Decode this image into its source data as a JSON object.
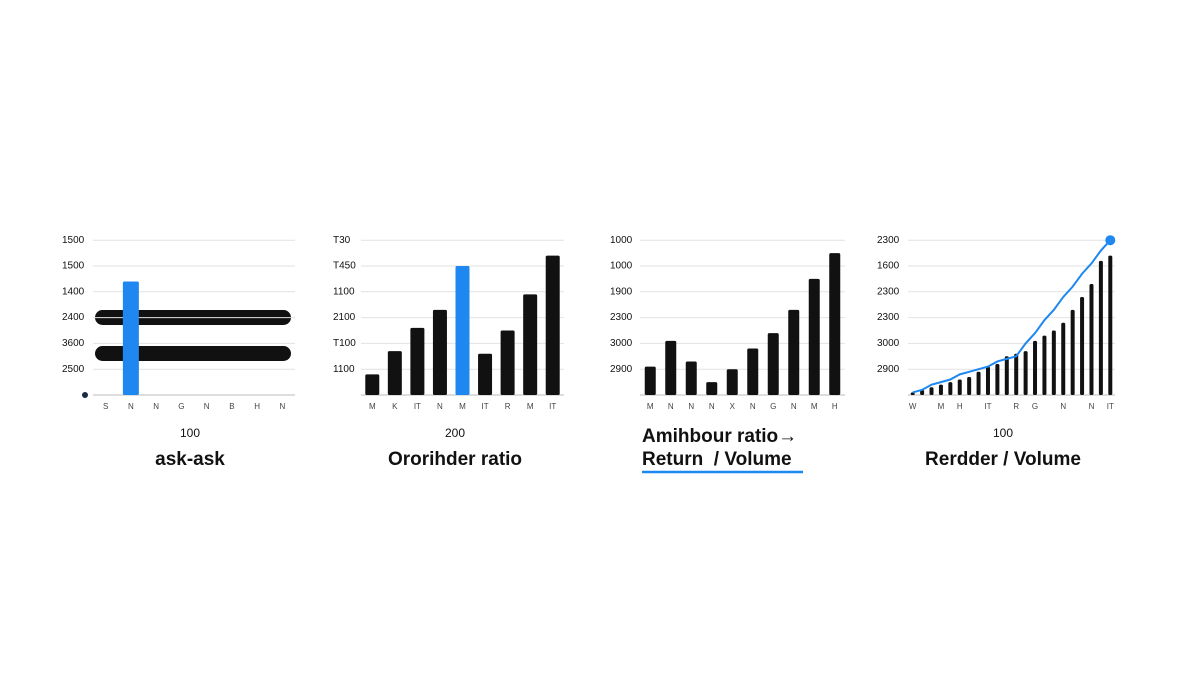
{
  "chart_data": [
    {
      "type": "bar",
      "title": "ask-ask",
      "note": "100",
      "grid": true,
      "ylim": [
        0,
        6
      ],
      "yticks": [
        {
          "value": 1,
          "label": "2500"
        },
        {
          "value": 2,
          "label": "3600"
        },
        {
          "value": 3,
          "label": "2400"
        },
        {
          "value": 4,
          "label": "1400"
        },
        {
          "value": 5,
          "label": "1500"
        },
        {
          "value": 6,
          "label": "1500"
        }
      ],
      "categories": [
        "S",
        "N",
        "N",
        "G",
        "N",
        "B",
        "H",
        "N"
      ],
      "series": [
        {
          "type": "bar",
          "color": "#1e88f0",
          "values": [
            null,
            4.4,
            null,
            null,
            null,
            null,
            null,
            null
          ]
        }
      ]
    },
    {
      "type": "bar",
      "title": "Ororihder ratio",
      "note": "200",
      "grid": true,
      "ylim": [
        0,
        6
      ],
      "yticks": [
        {
          "value": 1,
          "label": "1100"
        },
        {
          "value": 2,
          "label": "T100"
        },
        {
          "value": 3,
          "label": "2100"
        },
        {
          "value": 4,
          "label": "1100"
        },
        {
          "value": 5,
          "label": "T450"
        },
        {
          "value": 6,
          "label": "T30"
        }
      ],
      "categories": [
        "M",
        "K",
        "IT",
        "N",
        "M",
        "IT",
        "R",
        "M",
        "IT"
      ],
      "series": [
        {
          "type": "bar",
          "colors": [
            "#111111",
            "#111111",
            "#111111",
            "#111111",
            "#1e88f0",
            "#111111",
            "#111111",
            "#111111",
            "#111111"
          ],
          "values": [
            0.8,
            1.7,
            2.6,
            3.3,
            5.0,
            1.6,
            2.5,
            3.9,
            5.4
          ]
        }
      ]
    },
    {
      "type": "bar",
      "title": "Amihbour ratio→",
      "subtitle": "Return  / Volume",
      "grid": true,
      "ylim": [
        0,
        6
      ],
      "yticks": [
        {
          "value": 1,
          "label": "2900"
        },
        {
          "value": 2,
          "label": "3000"
        },
        {
          "value": 3,
          "label": "2300"
        },
        {
          "value": 4,
          "label": "1900"
        },
        {
          "value": 5,
          "label": "1000"
        },
        {
          "value": 6,
          "label": "1000"
        }
      ],
      "categories": [
        "M",
        "N",
        "N",
        "N",
        "X",
        "N",
        "G",
        "N",
        "M",
        "H"
      ],
      "series": [
        {
          "type": "bar",
          "color": "#111111",
          "values": [
            1.1,
            2.1,
            1.3,
            0.5,
            1.0,
            1.8,
            2.4,
            3.3,
            4.5,
            5.5
          ]
        }
      ]
    },
    {
      "type": "bar",
      "title": "Rerdder / Volume",
      "note": "100",
      "grid": true,
      "ylim": [
        0,
        6
      ],
      "yticks": [
        {
          "value": 1,
          "label": "2900"
        },
        {
          "value": 2,
          "label": "3000"
        },
        {
          "value": 3,
          "label": "2300"
        },
        {
          "value": 4,
          "label": "2300"
        },
        {
          "value": 5,
          "label": "1600"
        },
        {
          "value": 6,
          "label": "2300"
        }
      ],
      "categories": [
        "W",
        null,
        null,
        "M",
        null,
        "H",
        null,
        null,
        "IT",
        null,
        null,
        "R",
        null,
        "G",
        null,
        null,
        "N",
        null,
        null,
        "N",
        null,
        "IT"
      ],
      "series": [
        {
          "type": "bar",
          "color": "#111111",
          "values": [
            0.1,
            0.2,
            0.3,
            0.4,
            0.5,
            0.6,
            0.7,
            0.9,
            1.1,
            1.2,
            1.5,
            1.6,
            1.7,
            2.1,
            2.3,
            2.5,
            2.8,
            3.3,
            3.8,
            4.3,
            5.2,
            5.4
          ]
        },
        {
          "type": "line",
          "color": "#1e88f0",
          "values": [
            0.1,
            0.2,
            0.4,
            0.5,
            0.6,
            0.8,
            0.9,
            1.0,
            1.1,
            1.3,
            1.4,
            1.5,
            2.0,
            2.4,
            2.9,
            3.3,
            3.8,
            4.2,
            4.7,
            5.1,
            5.6,
            6.0
          ]
        }
      ]
    }
  ]
}
